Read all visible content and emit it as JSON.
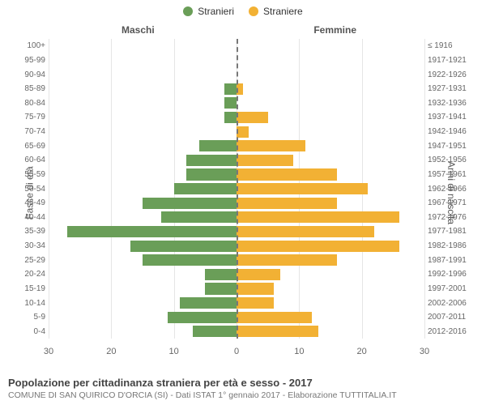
{
  "legend": {
    "male": {
      "label": "Stranieri",
      "color": "#6a9e58"
    },
    "female": {
      "label": "Straniere",
      "color": "#f2b134"
    }
  },
  "column_titles": {
    "left": "Maschi",
    "right": "Femmine"
  },
  "axis_titles": {
    "left": "Fasce di età",
    "right": "Anni di nascita"
  },
  "colors": {
    "male_bar": "#6a9e58",
    "female_bar": "#f2b134",
    "grid": "#e5e5e5",
    "center_line": "#777777",
    "text": "#555555",
    "background": "#ffffff"
  },
  "chart": {
    "type": "population-pyramid",
    "x_max": 30,
    "x_ticks": [
      0,
      10,
      20,
      30
    ],
    "bar_rel_height": 0.8,
    "rows": [
      {
        "age": "100+",
        "birth": "≤ 1916",
        "m": 0,
        "f": 0
      },
      {
        "age": "95-99",
        "birth": "1917-1921",
        "m": 0,
        "f": 0
      },
      {
        "age": "90-94",
        "birth": "1922-1926",
        "m": 0,
        "f": 0
      },
      {
        "age": "85-89",
        "birth": "1927-1931",
        "m": 2,
        "f": 1
      },
      {
        "age": "80-84",
        "birth": "1932-1936",
        "m": 2,
        "f": 0
      },
      {
        "age": "75-79",
        "birth": "1937-1941",
        "m": 2,
        "f": 5
      },
      {
        "age": "70-74",
        "birth": "1942-1946",
        "m": 0,
        "f": 2
      },
      {
        "age": "65-69",
        "birth": "1947-1951",
        "m": 6,
        "f": 11
      },
      {
        "age": "60-64",
        "birth": "1952-1956",
        "m": 8,
        "f": 9
      },
      {
        "age": "55-59",
        "birth": "1957-1961",
        "m": 8,
        "f": 16
      },
      {
        "age": "50-54",
        "birth": "1962-1966",
        "m": 10,
        "f": 21
      },
      {
        "age": "45-49",
        "birth": "1967-1971",
        "m": 15,
        "f": 16
      },
      {
        "age": "40-44",
        "birth": "1972-1976",
        "m": 12,
        "f": 26
      },
      {
        "age": "35-39",
        "birth": "1977-1981",
        "m": 27,
        "f": 22
      },
      {
        "age": "30-34",
        "birth": "1982-1986",
        "m": 17,
        "f": 26
      },
      {
        "age": "25-29",
        "birth": "1987-1991",
        "m": 15,
        "f": 16
      },
      {
        "age": "20-24",
        "birth": "1992-1996",
        "m": 5,
        "f": 7
      },
      {
        "age": "15-19",
        "birth": "1997-2001",
        "m": 5,
        "f": 6
      },
      {
        "age": "10-14",
        "birth": "2002-2006",
        "m": 9,
        "f": 6
      },
      {
        "age": "5-9",
        "birth": "2007-2011",
        "m": 11,
        "f": 12
      },
      {
        "age": "0-4",
        "birth": "2012-2016",
        "m": 7,
        "f": 13
      }
    ]
  },
  "footer": {
    "title": "Popolazione per cittadinanza straniera per età e sesso - 2017",
    "subtitle": "COMUNE DI SAN QUIRICO D'ORCIA (SI) - Dati ISTAT 1° gennaio 2017 - Elaborazione TUTTITALIA.IT"
  }
}
